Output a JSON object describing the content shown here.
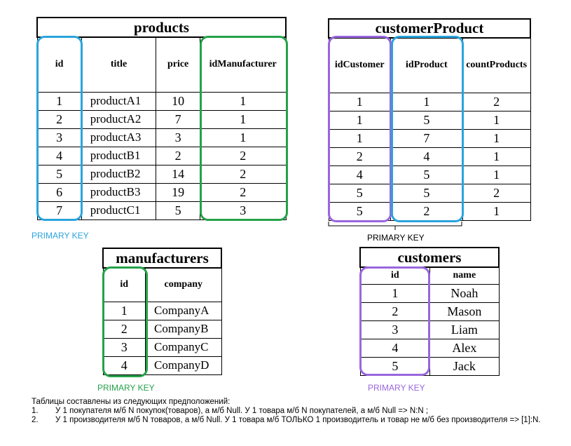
{
  "products": {
    "title": "products",
    "headers": [
      "id",
      "title",
      "price",
      "idManufacturer"
    ],
    "rows": [
      [
        "1",
        "productA1",
        "10",
        "1"
      ],
      [
        "2",
        "productA2",
        "7",
        "1"
      ],
      [
        "3",
        "productA3",
        "3",
        "1"
      ],
      [
        "4",
        "productB1",
        "2",
        "2"
      ],
      [
        "5",
        "productB2",
        "14",
        "2"
      ],
      [
        "6",
        "productB3",
        "19",
        "2"
      ],
      [
        "7",
        "productC1",
        "5",
        "3"
      ]
    ],
    "primary_key_label": "PRIMARY KEY",
    "primary_key_color": "#2aa4dc",
    "foreign_key_color": "#24a149"
  },
  "customerProduct": {
    "title": "customerProduct",
    "headers": [
      "idCustomer",
      "idProduct",
      "countProducts"
    ],
    "rows": [
      [
        "1",
        "1",
        "2"
      ],
      [
        "1",
        "5",
        "1"
      ],
      [
        "1",
        "7",
        "1"
      ],
      [
        "2",
        "4",
        "1"
      ],
      [
        "4",
        "5",
        "1"
      ],
      [
        "5",
        "5",
        "2"
      ],
      [
        "5",
        "2",
        "1"
      ]
    ],
    "primary_key_label": "PRIMARY KEY"
  },
  "manufacturers": {
    "title": "manufacturers",
    "headers": [
      "id",
      "company"
    ],
    "rows": [
      [
        "1",
        "CompanyA"
      ],
      [
        "2",
        "CompanyB"
      ],
      [
        "3",
        "CompanyC"
      ],
      [
        "4",
        "CompanyD"
      ]
    ],
    "primary_key_label": "PRIMARY KEY",
    "primary_key_color": "#24a149"
  },
  "customers": {
    "title": "customers",
    "headers": [
      "id",
      "name"
    ],
    "rows": [
      [
        "1",
        "Noah"
      ],
      [
        "2",
        "Mason"
      ],
      [
        "3",
        "Liam"
      ],
      [
        "4",
        "Alex"
      ],
      [
        "5",
        "Jack"
      ]
    ],
    "primary_key_label": "PRIMARY KEY",
    "primary_key_color": "#9966dd"
  },
  "notes": {
    "intro": "Таблицы  составлены из следующих  предположений:",
    "items": [
      {
        "num": "1.",
        "text": "У 1 покупателя  м/б  N покупок(товаров),   а м/б  Null.  У 1 товара м/б  N покупателей,  а м/б  Null => N:N ;"
      },
      {
        "num": "2.",
        "text": "У 1 производителя  м/б  N товаров,  а  м/б Null.  У 1 товара м/б  ТОЛЬКО 1 производитель  и товар не м/б без производителя  => [1]:N."
      }
    ]
  }
}
